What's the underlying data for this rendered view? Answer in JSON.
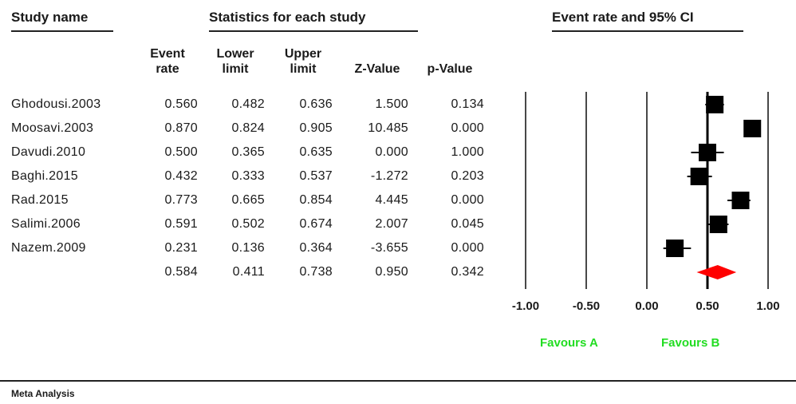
{
  "headers": {
    "study_name": "Study name",
    "statistics": "Statistics for each study",
    "plot_title": "Event rate and 95% CI"
  },
  "columns": [
    {
      "line1": "Event",
      "line2": "rate"
    },
    {
      "line1": "Lower",
      "line2": "limit"
    },
    {
      "line1": "Upper",
      "line2": "limit"
    },
    {
      "line1": "",
      "line2": "Z-Value"
    },
    {
      "line1": "",
      "line2": "p-Value"
    }
  ],
  "rows": [
    {
      "name": "Ghodousi.2003",
      "rate": "0.560",
      "lower": "0.482",
      "upper": "0.636",
      "z": "1.500",
      "p": "0.134"
    },
    {
      "name": "Moosavi.2003",
      "rate": "0.870",
      "lower": "0.824",
      "upper": "0.905",
      "z": "10.485",
      "p": "0.000"
    },
    {
      "name": "Davudi.2010",
      "rate": "0.500",
      "lower": "0.365",
      "upper": "0.635",
      "z": "0.000",
      "p": "1.000"
    },
    {
      "name": "Baghi.2015",
      "rate": "0.432",
      "lower": "0.333",
      "upper": "0.537",
      "z": "-1.272",
      "p": "0.203"
    },
    {
      "name": "Rad.2015",
      "rate": "0.773",
      "lower": "0.665",
      "upper": "0.854",
      "z": "4.445",
      "p": "0.000"
    },
    {
      "name": "Salimi.2006",
      "rate": "0.591",
      "lower": "0.502",
      "upper": "0.674",
      "z": "2.007",
      "p": "0.045"
    },
    {
      "name": "Nazem.2009",
      "rate": "0.231",
      "lower": "0.136",
      "upper": "0.364",
      "z": "-3.655",
      "p": "0.000"
    },
    {
      "name": "",
      "rate": "0.584",
      "lower": "0.411",
      "upper": "0.738",
      "z": "0.950",
      "p": "0.342"
    }
  ],
  "chart_data": {
    "type": "forest",
    "title": "Event rate and 95% CI",
    "xlim": [
      -1.0,
      1.0
    ],
    "x_ticks": [
      "-1.00",
      "-0.50",
      "0.00",
      "0.50",
      "1.00"
    ],
    "x_tick_values": [
      -1.0,
      -0.5,
      0.0,
      0.5,
      1.0
    ],
    "reference_line": 0.5,
    "studies": [
      {
        "name": "Ghodousi.2003",
        "estimate": 0.56,
        "lower": 0.482,
        "upper": 0.636
      },
      {
        "name": "Moosavi.2003",
        "estimate": 0.87,
        "lower": 0.824,
        "upper": 0.905
      },
      {
        "name": "Davudi.2010",
        "estimate": 0.5,
        "lower": 0.365,
        "upper": 0.635
      },
      {
        "name": "Baghi.2015",
        "estimate": 0.432,
        "lower": 0.333,
        "upper": 0.537
      },
      {
        "name": "Rad.2015",
        "estimate": 0.773,
        "lower": 0.665,
        "upper": 0.854
      },
      {
        "name": "Salimi.2006",
        "estimate": 0.591,
        "lower": 0.502,
        "upper": 0.674
      },
      {
        "name": "Nazem.2009",
        "estimate": 0.231,
        "lower": 0.136,
        "upper": 0.364
      }
    ],
    "summary": {
      "estimate": 0.584,
      "lower": 0.411,
      "upper": 0.738
    },
    "favours_left": "Favours A",
    "favours_right": "Favours B",
    "colors": {
      "marker": "#000000",
      "summary": "#ff0000",
      "favours": "#22dd22"
    }
  },
  "footer": "Meta Analysis"
}
